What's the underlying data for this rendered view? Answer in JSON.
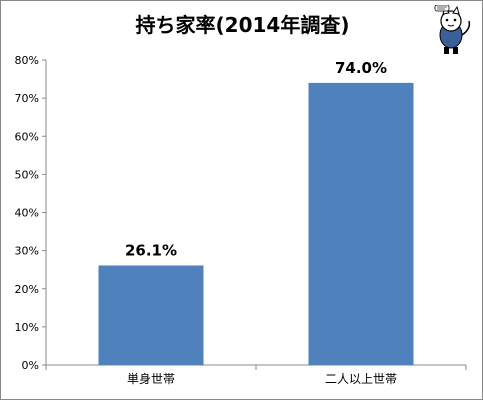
{
  "chart_data": {
    "type": "bar",
    "title": "持ち家率(2014年調査)",
    "categories": [
      "単身世帯",
      "二人以上世帯"
    ],
    "values": [
      26.1,
      74.0
    ],
    "data_labels": [
      "26.1%",
      "74.0%"
    ],
    "xlabel": "",
    "ylabel": "",
    "ylim": [
      0,
      80
    ],
    "yticks": [
      0,
      10,
      20,
      30,
      40,
      50,
      60,
      70,
      80
    ],
    "ytick_labels": [
      "0%",
      "10%",
      "20%",
      "30%",
      "40%",
      "50%",
      "60%",
      "70%",
      "80%"
    ],
    "grid": false,
    "legend": "none",
    "bar_color": "#4f81bd"
  },
  "decor": {
    "mascot": "cat-mascot-icon"
  }
}
